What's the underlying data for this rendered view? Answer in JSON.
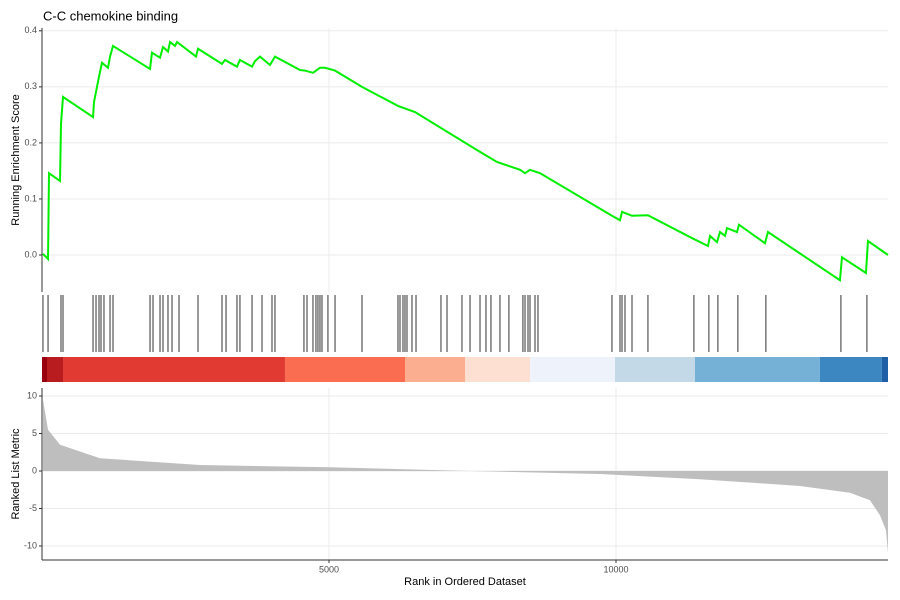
{
  "chart_data": [
    {
      "type": "line",
      "title": "C-C chemokine binding",
      "ylabel": "Running Enrichment Score",
      "xlim": [
        0,
        14739
      ],
      "ylim": [
        -0.066,
        0.405
      ],
      "yticks": [
        {
          "value": 0,
          "label": "0.0"
        },
        0.1,
        0.2,
        0.3,
        0.4
      ],
      "grid": true,
      "color": "#00ee00",
      "x": [
        17,
        105,
        122,
        314,
        331,
        366,
        889,
        906,
        993,
        1045,
        1150,
        1185,
        1237,
        1882,
        1916,
        2056,
        2108,
        2195,
        2230,
        2317,
        2352,
        2683,
        2718,
        3136,
        3188,
        3397,
        3449,
        3659,
        3711,
        3798,
        3972,
        4059,
        4495,
        4582,
        4721,
        4843,
        4930,
        5105,
        5575,
        6202,
        6498,
        7631,
        7927,
        8328,
        8415,
        8502,
        8676,
        9930,
        10070,
        10105,
        10279,
        10557,
        11289,
        11603,
        11638,
        11760,
        11812,
        11899,
        11934,
        12108,
        12143,
        12596,
        12648,
        13902,
        13937,
        14355,
        14390,
        14739
      ],
      "values": [
        0.002,
        -0.007,
        0.146,
        0.132,
        0.234,
        0.282,
        0.246,
        0.273,
        0.318,
        0.343,
        0.334,
        0.354,
        0.373,
        0.332,
        0.361,
        0.352,
        0.371,
        0.363,
        0.38,
        0.373,
        0.38,
        0.354,
        0.368,
        0.341,
        0.348,
        0.336,
        0.348,
        0.336,
        0.346,
        0.354,
        0.339,
        0.354,
        0.33,
        0.329,
        0.325,
        0.334,
        0.334,
        0.329,
        0.3,
        0.266,
        0.255,
        0.184,
        0.166,
        0.152,
        0.146,
        0.152,
        0.146,
        0.07,
        0.062,
        0.077,
        0.07,
        0.071,
        0.032,
        0.016,
        0.034,
        0.023,
        0.041,
        0.034,
        0.048,
        0.041,
        0.054,
        0.021,
        0.041,
        -0.045,
        -0.004,
        -0.032,
        0.025,
        0.0
      ]
    },
    {
      "type": "rug",
      "xlim": [
        0,
        14739
      ],
      "x": [
        17,
        105,
        331,
        366,
        889,
        941,
        993,
        1028,
        1080,
        1185,
        1237,
        1882,
        1934,
        2056,
        2108,
        2195,
        2265,
        2387,
        2718,
        3136,
        3206,
        3397,
        3449,
        3659,
        3833,
        4007,
        4059,
        4564,
        4617,
        4721,
        4773,
        4808,
        4843,
        4878,
        4982,
        5105,
        5575,
        6202,
        6237,
        6289,
        6324,
        6359,
        6446,
        6516,
        6951,
        7056,
        7317,
        7457,
        7631,
        7735,
        7822,
        7979,
        8135,
        8379,
        8415,
        8467,
        8502,
        8589,
        8641,
        9930,
        10070,
        10105,
        10157,
        10279,
        10557,
        11358,
        11619,
        11776,
        12124,
        12612,
        13919,
        14372
      ],
      "color": "#000000",
      "band_edges": [
        0,
        87,
        366,
        4233,
        6324,
        7370,
        8502,
        9983,
        11376,
        13553,
        14633,
        14739
      ],
      "band_colors": [
        "#99000d",
        "#b81c1e",
        "#e03a33",
        "#fb6d51",
        "#fcae91",
        "#fde0d2",
        "#eef3fb",
        "#c3d9e8",
        "#75b1d6",
        "#3c86c2",
        "#1f5fa6"
      ]
    },
    {
      "type": "area",
      "ylabel": "Ranked List Metric",
      "xlabel": "Rank in Ordered Dataset",
      "xlim": [
        0,
        14739
      ],
      "ylim": [
        -11.87,
        11.07
      ],
      "yticks": [
        -10,
        -5,
        0,
        5,
        10
      ],
      "xticks": [
        5000,
        10000
      ],
      "grid": true,
      "color": "#bebebe",
      "x": [
        17,
        105,
        314,
        1010,
        2752,
        5017,
        7456,
        9720,
        11463,
        13205,
        14076,
        14425,
        14599,
        14704,
        14739
      ],
      "values": [
        9.5,
        5.5,
        3.5,
        1.7,
        0.8,
        0.5,
        0,
        -0.4,
        -1.1,
        -2,
        -2.9,
        -3.9,
        -5.9,
        -7.9,
        -10.9
      ]
    }
  ]
}
